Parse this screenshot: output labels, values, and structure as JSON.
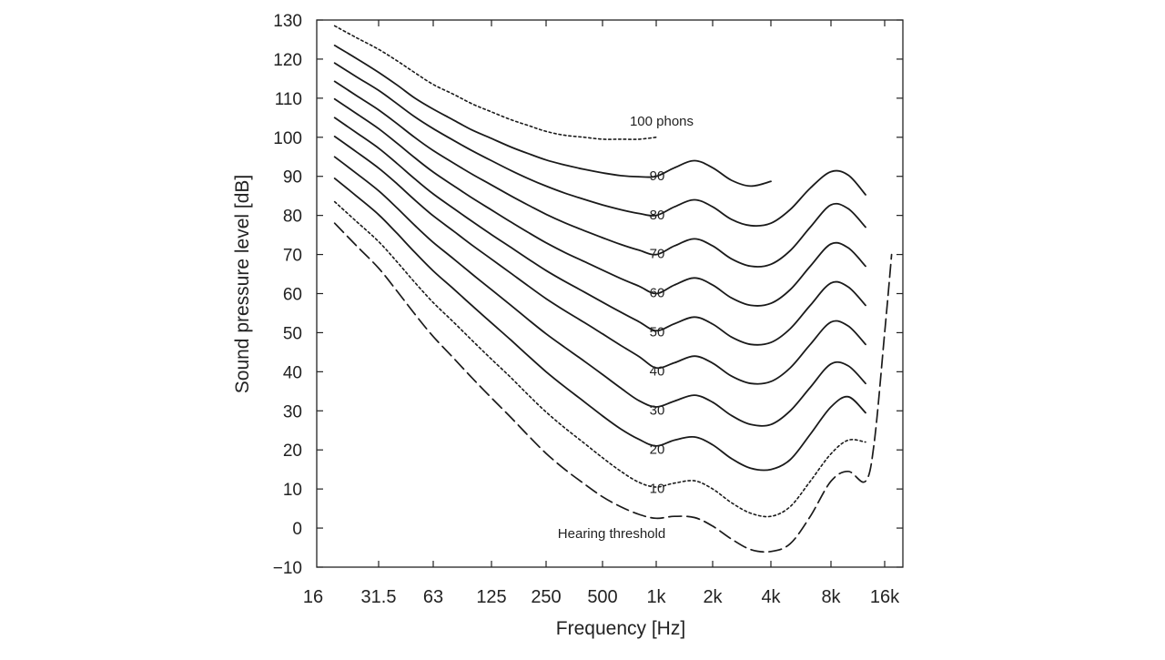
{
  "chart_data": {
    "type": "line",
    "xlabel": "Frequency [Hz]",
    "ylabel": "Sound pressure level [dB]",
    "x_scale": "log",
    "x_ticks": [
      {
        "value": 16,
        "label": "16"
      },
      {
        "value": 31.5,
        "label": "31.5"
      },
      {
        "value": 63,
        "label": "63"
      },
      {
        "value": 125,
        "label": "125"
      },
      {
        "value": 250,
        "label": "250"
      },
      {
        "value": 500,
        "label": "500"
      },
      {
        "value": 1000,
        "label": "1k"
      },
      {
        "value": 2000,
        "label": "2k"
      },
      {
        "value": 4000,
        "label": "4k"
      },
      {
        "value": 8000,
        "label": "8k"
      },
      {
        "value": 16000,
        "label": "16k"
      }
    ],
    "y_ticks": [
      130,
      120,
      110,
      100,
      90,
      80,
      70,
      60,
      50,
      40,
      30,
      20,
      10,
      0,
      -10
    ],
    "y_tick_labels": [
      "130",
      "120",
      "110",
      "100",
      "90",
      "80",
      "70",
      "60",
      "50",
      "40",
      "30",
      "20",
      "10",
      "0",
      "−10"
    ],
    "xlim": [
      16,
      20000
    ],
    "ylim": [
      -10,
      130
    ],
    "grid": false,
    "series": [
      {
        "name": "100 phons",
        "style": "dotted",
        "label_text": "100 phons",
        "x": [
          20,
          25,
          31.5,
          40,
          50,
          63,
          80,
          100,
          125,
          160,
          200,
          250,
          315,
          400,
          500,
          630,
          800,
          1000
        ],
        "y": [
          128.5,
          125.5,
          122.5,
          119.5,
          116.5,
          113.5,
          111,
          108.5,
          106.5,
          104.5,
          103,
          101.5,
          100.5,
          100,
          99.5,
          99.5,
          99.5,
          100
        ]
      },
      {
        "name": "90",
        "style": "solid",
        "label_text": "90",
        "x": [
          20,
          25,
          31.5,
          40,
          50,
          63,
          80,
          100,
          125,
          160,
          200,
          250,
          315,
          400,
          500,
          630,
          800,
          1000,
          1250,
          1600,
          2000,
          2500,
          3150,
          4000
        ],
        "y": [
          123.5,
          120.2,
          116.6,
          113.3,
          110,
          107.2,
          104.4,
          101.8,
          99.7,
          97.5,
          95.8,
          94.2,
          92.9,
          91.8,
          90.9,
          90.2,
          89.9,
          90,
          92.2,
          94,
          92.2,
          89,
          87.5,
          88.7
        ]
      },
      {
        "name": "80",
        "style": "solid",
        "label_text": "80",
        "x": [
          20,
          25,
          31.5,
          40,
          50,
          63,
          80,
          100,
          125,
          160,
          200,
          250,
          315,
          400,
          500,
          630,
          800,
          1000,
          1250,
          1600,
          2000,
          2500,
          3150,
          4000,
          5000,
          6300,
          8000,
          10000,
          12500
        ],
        "y": [
          119,
          115.5,
          112,
          108.5,
          105.2,
          102.2,
          99.2,
          96.5,
          94,
          91.5,
          89.4,
          87.5,
          85.7,
          84.1,
          82.7,
          81.5,
          80.5,
          80,
          82.2,
          84,
          82.2,
          79,
          77.4,
          78,
          81.5,
          87,
          91.2,
          90.3,
          85.3
        ]
      },
      {
        "name": "70",
        "style": "solid",
        "label_text": "70",
        "x": [
          20,
          25,
          31.5,
          40,
          50,
          63,
          80,
          100,
          125,
          160,
          200,
          250,
          315,
          400,
          500,
          630,
          800,
          1000,
          1250,
          1600,
          2000,
          2500,
          3150,
          4000,
          5000,
          6300,
          8000,
          10000,
          12500
        ],
        "y": [
          114.3,
          110.7,
          107,
          103.4,
          99.9,
          96.6,
          93.4,
          90.5,
          87.8,
          85,
          82.6,
          80.3,
          78.1,
          76.1,
          74.3,
          72.6,
          71.1,
          70,
          72.2,
          74,
          72.2,
          68.9,
          67,
          67.5,
          71,
          77,
          82.7,
          81.7,
          77
        ]
      },
      {
        "name": "60",
        "style": "solid",
        "label_text": "60",
        "x": [
          20,
          25,
          31.5,
          40,
          50,
          63,
          80,
          100,
          125,
          160,
          200,
          250,
          315,
          400,
          500,
          630,
          800,
          1000,
          1250,
          1600,
          2000,
          2500,
          3150,
          4000,
          5000,
          6300,
          8000,
          10000,
          12500
        ],
        "y": [
          109.8,
          106.1,
          102.2,
          98.4,
          94.7,
          91.1,
          87.6,
          84.4,
          81.4,
          78.3,
          75.6,
          73,
          70.5,
          68.2,
          66,
          63.9,
          61.9,
          60,
          62.2,
          64,
          62.2,
          58.9,
          57,
          57.5,
          61,
          67,
          72.7,
          71.7,
          67
        ]
      },
      {
        "name": "50",
        "style": "solid",
        "label_text": "50",
        "x": [
          20,
          25,
          31.5,
          40,
          50,
          63,
          80,
          100,
          125,
          160,
          200,
          250,
          315,
          400,
          500,
          630,
          800,
          1000,
          1250,
          1600,
          2000,
          2500,
          3150,
          4000,
          5000,
          6300,
          8000,
          10000,
          12500
        ],
        "y": [
          105,
          101.2,
          97.2,
          93.2,
          89.3,
          85.5,
          81.8,
          78.4,
          75.1,
          71.8,
          68.8,
          65.9,
          63.1,
          60.4,
          57.8,
          55.3,
          52.8,
          50.5,
          52.3,
          54,
          52.2,
          48.9,
          47,
          47.5,
          51,
          57,
          62.7,
          61.7,
          57
        ]
      },
      {
        "name": "40",
        "style": "solid",
        "label_text": "40",
        "x": [
          20,
          25,
          31.5,
          40,
          50,
          63,
          80,
          100,
          125,
          160,
          200,
          250,
          315,
          400,
          500,
          630,
          800,
          1000,
          1250,
          1600,
          2000,
          2500,
          3150,
          4000,
          5000,
          6300,
          8000,
          10000,
          12500
        ],
        "y": [
          100.2,
          96.3,
          92.1,
          88,
          83.9,
          79.9,
          76,
          72.3,
          68.8,
          65.2,
          61.9,
          58.7,
          55.6,
          52.6,
          49.7,
          46.8,
          43.9,
          41,
          42.3,
          44,
          42.2,
          38.9,
          37,
          37.5,
          41,
          47,
          52.7,
          51.7,
          47
        ]
      },
      {
        "name": "30",
        "style": "solid",
        "label_text": "30",
        "x": [
          20,
          25,
          31.5,
          40,
          50,
          63,
          80,
          100,
          125,
          160,
          200,
          250,
          315,
          400,
          500,
          630,
          800,
          1000,
          1250,
          1600,
          2000,
          2500,
          3150,
          4000,
          5000,
          6300,
          8000,
          10000,
          12500
        ],
        "y": [
          95,
          90.8,
          86.3,
          81.8,
          77.4,
          73.1,
          68.9,
          64.9,
          61,
          57,
          53.3,
          49.7,
          46.2,
          42.7,
          39.3,
          35.9,
          32.6,
          31,
          32.5,
          34,
          32.2,
          28.8,
          26.5,
          26.5,
          30,
          36,
          42,
          41.5,
          37
        ]
      },
      {
        "name": "20",
        "style": "solid",
        "label_text": "20",
        "x": [
          20,
          25,
          31.5,
          40,
          50,
          63,
          80,
          100,
          125,
          160,
          200,
          250,
          315,
          400,
          500,
          630,
          800,
          1000,
          1250,
          1600,
          2000,
          2500,
          3150,
          4000,
          5000,
          6300,
          8000,
          10000,
          12500
        ],
        "y": [
          89.5,
          85,
          80.2,
          75.3,
          70.5,
          65.8,
          61.2,
          56.8,
          52.5,
          48.1,
          44,
          40,
          36.1,
          32.3,
          28.7,
          25.4,
          22.7,
          21,
          22.5,
          23.3,
          21.3,
          17.8,
          15.3,
          15,
          17.5,
          24,
          31,
          33.6,
          29.5
        ]
      },
      {
        "name": "10",
        "style": "dotted",
        "label_text": "10",
        "x": [
          20,
          25,
          31.5,
          40,
          50,
          63,
          80,
          100,
          125,
          160,
          200,
          250,
          315,
          400,
          500,
          630,
          800,
          1000,
          1250,
          1600,
          2000,
          2500,
          3150,
          4000,
          5000,
          6300,
          8000,
          10000,
          12500
        ],
        "y": [
          83.5,
          78.5,
          73.3,
          68,
          62.8,
          57.7,
          52.7,
          47.9,
          43.2,
          38.5,
          34,
          29.7,
          25.6,
          21.7,
          18,
          14.6,
          11.7,
          10.5,
          11.5,
          12.1,
          10,
          6.5,
          3.8,
          3,
          5.5,
          12,
          19,
          22.5,
          22
        ]
      },
      {
        "name": "Hearing threshold",
        "style": "dashed",
        "label_text": "Hearing threshold",
        "x": [
          20,
          25,
          31.5,
          40,
          50,
          63,
          80,
          100,
          125,
          160,
          200,
          250,
          315,
          400,
          500,
          630,
          800,
          1000,
          1250,
          1600,
          2000,
          2500,
          3150,
          4000,
          5000,
          6300,
          8000,
          10000,
          12500,
          14000,
          16000,
          17500
        ],
        "y": [
          78,
          72.3,
          66.5,
          60.5,
          54.7,
          49,
          43.5,
          38.3,
          33.3,
          28.3,
          23.6,
          19.1,
          15,
          11.3,
          8,
          5.5,
          3.5,
          2.5,
          3,
          2.7,
          0.5,
          -2.8,
          -5.5,
          -6,
          -4,
          3,
          12,
          14.5,
          12,
          22,
          50,
          70
        ]
      }
    ]
  }
}
